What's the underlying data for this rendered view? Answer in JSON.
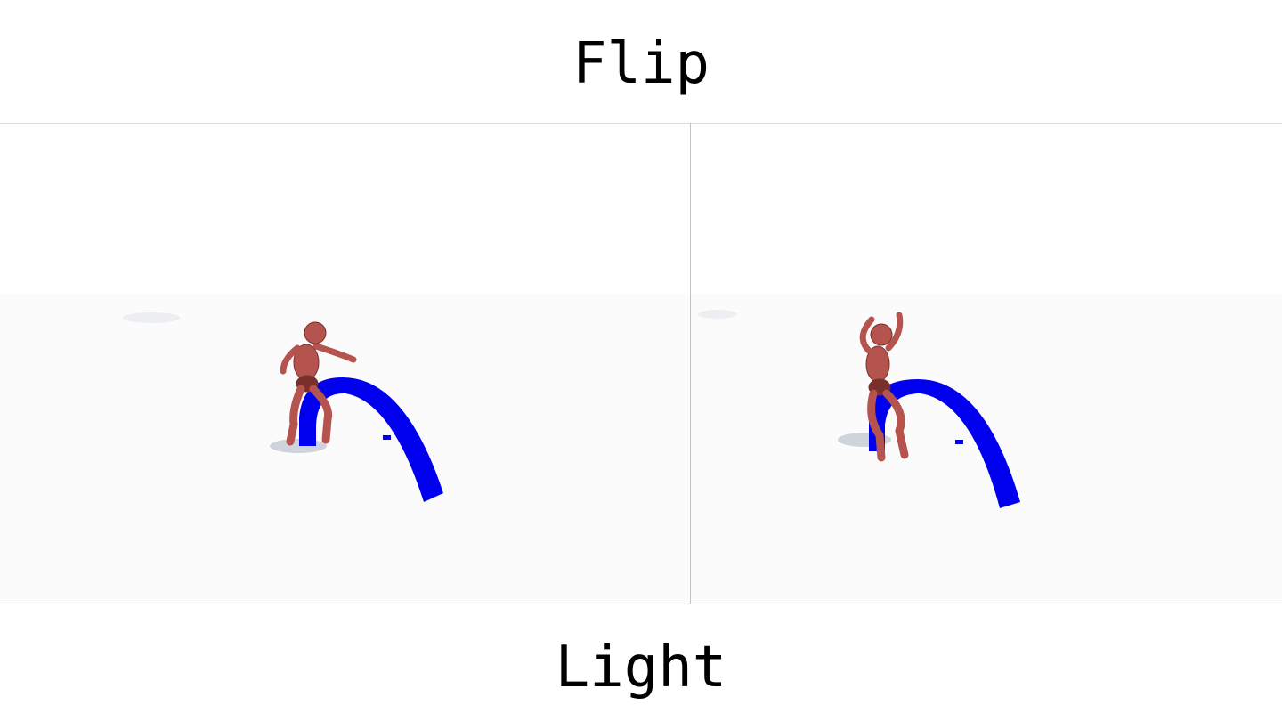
{
  "top_caption": "Flip",
  "bottom_caption": "Light",
  "colors": {
    "figure": "#b5544e",
    "figure_shade": "#7a2f2c",
    "arch": "#0000ee",
    "floor": "#fbfbfb",
    "shadow": "#cfd3dc"
  },
  "panels": [
    {
      "name": "left-scene"
    },
    {
      "name": "right-scene"
    }
  ]
}
